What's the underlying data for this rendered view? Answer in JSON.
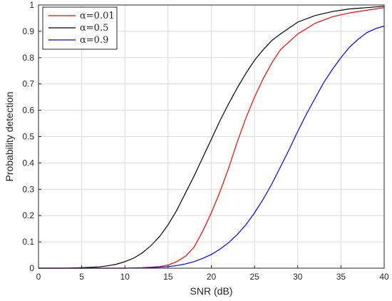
{
  "chart_data": {
    "type": "line",
    "xlabel": "SNR (dB)",
    "ylabel": "Probability detection",
    "xlim": [
      0,
      40
    ],
    "ylim": [
      0,
      1
    ],
    "xticks": [
      "0",
      "5",
      "10",
      "15",
      "20",
      "25",
      "30",
      "35",
      "40"
    ],
    "yticks": [
      "0",
      "0.1",
      "0.2",
      "0.3",
      "0.4",
      "0.5",
      "0.6",
      "0.7",
      "0.8",
      "0.9",
      "1"
    ],
    "grid": true,
    "legend_position": "top-left",
    "series": [
      {
        "name": "α=0.01",
        "color": "#ff0000",
        "x": [
          0,
          5,
          10,
          12,
          14,
          15,
          16,
          17,
          18,
          19,
          20,
          21,
          22,
          23,
          24,
          25,
          26,
          27,
          28,
          30,
          32,
          34,
          36,
          38,
          40
        ],
        "y": [
          0,
          0,
          0,
          0.002,
          0.006,
          0.012,
          0.025,
          0.045,
          0.08,
          0.14,
          0.21,
          0.29,
          0.38,
          0.48,
          0.57,
          0.65,
          0.72,
          0.78,
          0.83,
          0.89,
          0.93,
          0.955,
          0.97,
          0.98,
          0.99
        ]
      },
      {
        "name": "α=0.5",
        "color": "#000000",
        "x": [
          0,
          3,
          5,
          7,
          8,
          9,
          10,
          11,
          12,
          13,
          14,
          15,
          16,
          17,
          18,
          19,
          20,
          21,
          22,
          23,
          24,
          25,
          26,
          27,
          28,
          30,
          32,
          34,
          36,
          38,
          40
        ],
        "y": [
          0,
          0,
          0.002,
          0.005,
          0.009,
          0.015,
          0.025,
          0.038,
          0.058,
          0.085,
          0.12,
          0.165,
          0.22,
          0.285,
          0.35,
          0.42,
          0.49,
          0.56,
          0.625,
          0.685,
          0.74,
          0.79,
          0.83,
          0.865,
          0.89,
          0.935,
          0.96,
          0.975,
          0.985,
          0.99,
          0.995
        ]
      },
      {
        "name": "α=0.9",
        "color": "#0000ff",
        "x": [
          0,
          10,
          13,
          15,
          16,
          17,
          18,
          19,
          20,
          21,
          22,
          23,
          24,
          25,
          26,
          27,
          28,
          29,
          30,
          31,
          32,
          33,
          34,
          35,
          36,
          37,
          38,
          39,
          40
        ],
        "y": [
          0,
          0,
          0.002,
          0.006,
          0.01,
          0.016,
          0.025,
          0.037,
          0.052,
          0.072,
          0.097,
          0.128,
          0.165,
          0.21,
          0.262,
          0.32,
          0.385,
          0.45,
          0.52,
          0.585,
          0.645,
          0.705,
          0.755,
          0.8,
          0.84,
          0.87,
          0.895,
          0.91,
          0.92
        ]
      }
    ]
  }
}
